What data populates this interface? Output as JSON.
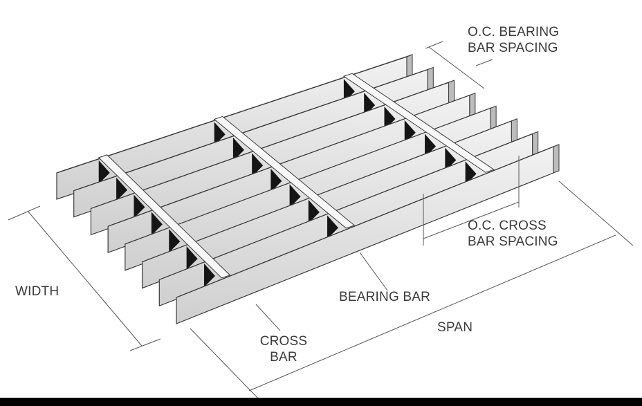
{
  "labels": {
    "oc_bearing_bar_spacing": "O.C. BEARING\nBAR SPACING",
    "oc_cross_bar_spacing": "O.C. CROSS\nBAR SPACING",
    "width": "WIDTH",
    "bearing_bar": "BEARING BAR",
    "cross_bar": "CROSS\nBAR",
    "span": "SPAN"
  },
  "colors": {
    "outline": "#3a3a3a",
    "bar_face": "#d9d9d9",
    "bar_top": "#f4f4f4",
    "shadow": "#151515",
    "dimension_line": "#555555"
  }
}
